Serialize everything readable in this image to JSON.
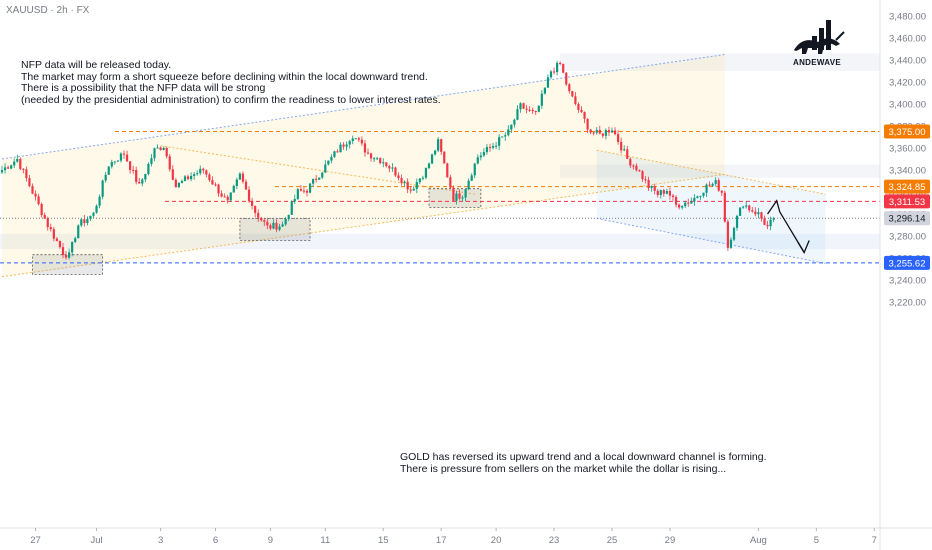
{
  "header": {
    "symbol": "XAUUSD · 2h · FX"
  },
  "logo": {
    "name": "bull-chart-logo-icon",
    "text": "ANDEWAVE"
  },
  "annotations": {
    "top_note": "NFP data will be released today.\nThe market may form a short squeeze before declining within the local downward trend.\nThere is a possibility that the NFP data will be strong\n(needed by the presidential administration) to confirm the readiness to lower interest rates.",
    "bottom_note": "GOLD has reversed its upward trend and a local downward channel is forming.\nThere is pressure from sellers on the market while the dollar is rising..."
  },
  "colors": {
    "up_candle": "#089981",
    "down_candle": "#f23645",
    "orange_level": "#f57c00",
    "red_level": "#f23645",
    "blue_level": "#2962ff",
    "current_price": "#787b86",
    "channel_blue": "#5b8def",
    "channel_orange": "#f5a623"
  },
  "chart_data": {
    "type": "candlestick",
    "y_axis": {
      "range": [
        3200,
        3470
      ],
      "ticks": [
        "3,220.00",
        "3,240.00",
        "3,260.00",
        "3,280.00",
        "3,300.00",
        "3,320.00",
        "3,340.00",
        "3,360.00",
        "3,380.00",
        "3,400.00",
        "3,420.00",
        "3,440.00",
        "3,460.00",
        "3,480.00"
      ],
      "tick_values": [
        3220,
        3240,
        3260,
        3280,
        3300,
        3320,
        3340,
        3360,
        3380,
        3400,
        3420,
        3440,
        3460,
        3480
      ]
    },
    "x_axis": {
      "labels": [
        "27",
        "Jul",
        "3",
        "6",
        "9",
        "11",
        "15",
        "17",
        "20",
        "23",
        "25",
        "29",
        "Aug",
        "5",
        "7"
      ],
      "bar_index": [
        11,
        31,
        52,
        70,
        88,
        106,
        125,
        144,
        162,
        181,
        200,
        219,
        248,
        267,
        286
      ]
    },
    "price_levels": [
      {
        "label": "3,375.00",
        "value": 3375.0,
        "style": "orange-dashed"
      },
      {
        "label": "3,324.85",
        "value": 3324.85,
        "style": "orange-dashed"
      },
      {
        "label": "3,311.53",
        "value": 3311.53,
        "style": "red-dashed"
      },
      {
        "label": "3,296.14",
        "value": 3296.14,
        "style": "current-price"
      },
      {
        "label": "3,255.62",
        "value": 3255.62,
        "style": "blue-dashed"
      }
    ],
    "ohlc_path": [
      [
        0,
        3340
      ],
      [
        5,
        3350
      ],
      [
        10,
        3320
      ],
      [
        15,
        3290
      ],
      [
        20,
        3265
      ],
      [
        22,
        3262
      ],
      [
        25,
        3290
      ],
      [
        30,
        3300
      ],
      [
        35,
        3345
      ],
      [
        40,
        3355
      ],
      [
        45,
        3325
      ],
      [
        50,
        3358
      ],
      [
        53,
        3362
      ],
      [
        57,
        3325
      ],
      [
        62,
        3335
      ],
      [
        66,
        3340
      ],
      [
        70,
        3325
      ],
      [
        74,
        3310
      ],
      [
        78,
        3335
      ],
      [
        83,
        3302
      ],
      [
        87,
        3288
      ],
      [
        92,
        3290
      ],
      [
        97,
        3320
      ],
      [
        100,
        3322
      ],
      [
        105,
        3340
      ],
      [
        110,
        3358
      ],
      [
        115,
        3372
      ],
      [
        120,
        3355
      ],
      [
        125,
        3348
      ],
      [
        130,
        3335
      ],
      [
        134,
        3322
      ],
      [
        139,
        3340
      ],
      [
        143,
        3365
      ],
      [
        148,
        3315
      ],
      [
        151,
        3318
      ],
      [
        156,
        3352
      ],
      [
        160,
        3360
      ],
      [
        166,
        3374
      ],
      [
        170,
        3398
      ],
      [
        175,
        3390
      ],
      [
        180,
        3430
      ],
      [
        183,
        3436
      ],
      [
        186,
        3410
      ],
      [
        189,
        3395
      ],
      [
        193,
        3375
      ],
      [
        196,
        3372
      ],
      [
        200,
        3378
      ],
      [
        205,
        3350
      ],
      [
        208,
        3342
      ],
      [
        212,
        3325
      ],
      [
        215,
        3318
      ],
      [
        218,
        3322
      ],
      [
        221,
        3308
      ],
      [
        226,
        3312
      ],
      [
        231,
        3325
      ],
      [
        234,
        3328
      ],
      [
        236,
        3320
      ],
      [
        238,
        3270
      ],
      [
        240,
        3290
      ],
      [
        243,
        3310
      ],
      [
        245,
        3305
      ],
      [
        248,
        3300
      ],
      [
        251,
        3288
      ],
      [
        253,
        3296
      ]
    ],
    "channels": [
      {
        "name": "rising-channel-upper",
        "from": [
          0,
          3350
        ],
        "to": [
          237,
          3445
        ]
      },
      {
        "name": "rising-channel-lower",
        "from": [
          0,
          3243
        ],
        "to": [
          237,
          3336
        ]
      },
      {
        "name": "falling-channel-upper",
        "from": [
          195,
          3358
        ],
        "to": [
          270,
          3318
        ]
      },
      {
        "name": "falling-channel-lower",
        "from": [
          195,
          3296
        ],
        "to": [
          270,
          3255
        ]
      },
      {
        "name": "inner-falling-line",
        "from": [
          52,
          3362
        ],
        "to": [
          155,
          3318
        ]
      }
    ],
    "zones": [
      {
        "name": "demand-zone-1",
        "x": [
          10,
          33
        ],
        "y": [
          3245,
          3263
        ]
      },
      {
        "name": "demand-zone-2",
        "x": [
          78,
          101
        ],
        "y": [
          3276,
          3296
        ]
      },
      {
        "name": "demand-zone-3",
        "x": [
          140,
          157
        ],
        "y": [
          3306,
          3323
        ]
      }
    ],
    "forecast_path": [
      [
        251,
        3300
      ],
      [
        254,
        3312
      ],
      [
        255,
        3302
      ],
      [
        263,
        3265
      ]
    ]
  }
}
